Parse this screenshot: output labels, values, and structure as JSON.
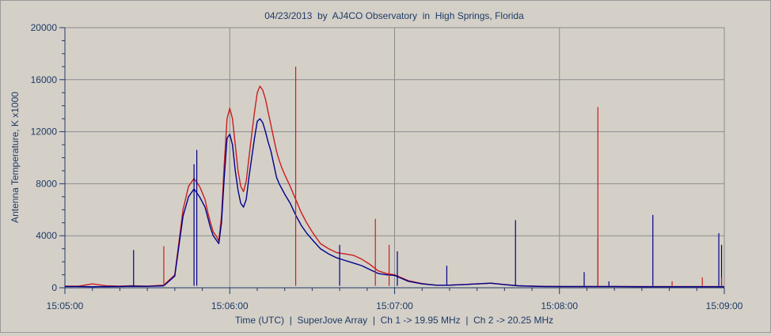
{
  "chart_data": {
    "type": "line",
    "title": "04/23/2013  by  AJ4CO Observatory  in  High Springs, Florida",
    "xlabel": "Time (UTC)  |  SuperJove Array  |  Ch 1 -> 19.95 MHz  |  Ch 2 -> 20.25 MHz",
    "ylabel": "Antenna Temperature, K x1000",
    "x_unit": "time (HH:MM:SS UTC)",
    "xlim": [
      "15:05:00",
      "15:09:00"
    ],
    "ylim": [
      0,
      20000
    ],
    "x_ticks": [
      "15:05:00",
      "15:06:00",
      "15:07:00",
      "15:08:00",
      "15:09:00"
    ],
    "y_ticks": [
      "0",
      "4000",
      "8000",
      "12000",
      "16000",
      "20000"
    ],
    "grid": true,
    "colors": {
      "ch1": "#00008b",
      "ch2": "#c81e1e",
      "plot_bg": "#d4d0c8",
      "text": "#1f3a66",
      "grid": "#8c8c8c"
    },
    "series": [
      {
        "color": "#00008b",
        "x": [
          "15:05:00",
          "15:05:05",
          "15:05:10",
          "15:05:15",
          "15:05:20",
          "15:05:24",
          "15:05:30",
          "15:05:36",
          "15:05:40",
          "15:05:43",
          "15:05:45",
          "15:05:47",
          "15:05:49",
          "15:05:51",
          "15:05:52",
          "15:05:53",
          "15:05:54",
          "15:05:55",
          "15:05:56",
          "15:05:57",
          "15:05:58",
          "15:05:59",
          "15:06:00",
          "15:06:01",
          "15:06:02",
          "15:06:03",
          "15:06:04",
          "15:06:05",
          "15:06:06",
          "15:06:07",
          "15:06:08",
          "15:06:09",
          "15:06:10",
          "15:06:11",
          "15:06:12",
          "15:06:13",
          "15:06:14",
          "15:06:15",
          "15:06:16",
          "15:06:17",
          "15:06:18",
          "15:06:19",
          "15:06:20",
          "15:06:22",
          "15:06:24",
          "15:06:26",
          "15:06:28",
          "15:06:30",
          "15:06:33",
          "15:06:36",
          "15:06:39",
          "15:06:42",
          "15:06:45",
          "15:06:48",
          "15:06:51",
          "15:06:54",
          "15:06:57",
          "15:07:00",
          "15:07:05",
          "15:07:10",
          "15:07:15",
          "15:07:20",
          "15:07:25",
          "15:07:30",
          "15:07:35",
          "15:07:40",
          "15:07:45",
          "15:07:50",
          "15:07:55",
          "15:08:00",
          "15:08:10",
          "15:08:20",
          "15:08:30",
          "15:08:40",
          "15:08:50",
          "15:09:00"
        ],
        "y": [
          100,
          100,
          80,
          90,
          100,
          120,
          110,
          150,
          900,
          5500,
          7000,
          7600,
          7000,
          6200,
          5400,
          4600,
          4000,
          3700,
          3400,
          5000,
          8500,
          11500,
          11800,
          11000,
          9000,
          7500,
          6500,
          6200,
          6800,
          8500,
          10000,
          11500,
          12800,
          13000,
          12700,
          12000,
          11200,
          10500,
          9500,
          8500,
          8000,
          7600,
          7200,
          6500,
          5600,
          4800,
          4200,
          3700,
          3000,
          2600,
          2300,
          2100,
          1900,
          1700,
          1400,
          1100,
          1000,
          950,
          500,
          300,
          200,
          200,
          250,
          300,
          350,
          250,
          150,
          120,
          100,
          100,
          100,
          100,
          80,
          80,
          80,
          80
        ]
      },
      {
        "color": "#c81e1e",
        "x": [
          "15:05:00",
          "15:05:05",
          "15:05:10",
          "15:05:15",
          "15:05:20",
          "15:05:24",
          "15:05:30",
          "15:05:36",
          "15:05:40",
          "15:05:43",
          "15:05:45",
          "15:05:47",
          "15:05:49",
          "15:05:51",
          "15:05:52",
          "15:05:53",
          "15:05:54",
          "15:05:55",
          "15:05:56",
          "15:05:57",
          "15:05:58",
          "15:05:59",
          "15:06:00",
          "15:06:01",
          "15:06:02",
          "15:06:03",
          "15:06:04",
          "15:06:05",
          "15:06:06",
          "15:06:07",
          "15:06:08",
          "15:06:09",
          "15:06:10",
          "15:06:11",
          "15:06:12",
          "15:06:13",
          "15:06:14",
          "15:06:15",
          "15:06:16",
          "15:06:17",
          "15:06:18",
          "15:06:19",
          "15:06:20",
          "15:06:22",
          "15:06:24",
          "15:06:26",
          "15:06:28",
          "15:06:30",
          "15:06:33",
          "15:06:36",
          "15:06:39",
          "15:06:42",
          "15:06:45",
          "15:06:48",
          "15:06:51",
          "15:06:54",
          "15:06:57",
          "15:07:00",
          "15:07:05",
          "15:07:10",
          "15:07:15",
          "15:07:20",
          "15:07:25",
          "15:07:30",
          "15:07:35",
          "15:07:40",
          "15:07:45",
          "15:07:50",
          "15:07:55",
          "15:08:00",
          "15:08:10",
          "15:08:20",
          "15:08:30",
          "15:08:40",
          "15:08:50",
          "15:09:00"
        ],
        "y": [
          120,
          120,
          300,
          150,
          120,
          150,
          120,
          200,
          1000,
          6000,
          7800,
          8400,
          7800,
          6800,
          5800,
          5000,
          4300,
          4000,
          3600,
          5500,
          9500,
          13000,
          13800,
          13000,
          11000,
          9000,
          7800,
          7400,
          8200,
          10000,
          11800,
          13500,
          15000,
          15500,
          15200,
          14500,
          13500,
          12500,
          11500,
          10500,
          9800,
          9200,
          8700,
          7800,
          6800,
          5800,
          5000,
          4300,
          3400,
          3000,
          2700,
          2600,
          2500,
          2200,
          1800,
          1300,
          1100,
          1000,
          550,
          320,
          200,
          200,
          250,
          300,
          350,
          250,
          150,
          130,
          110,
          100,
          100,
          100,
          90,
          90,
          90,
          90
        ]
      }
    ],
    "spikes": [
      {
        "color": "#00008b",
        "x": "15:05:25",
        "y": 2900
      },
      {
        "color": "#c81e1e",
        "x": "15:05:36",
        "y": 3200
      },
      {
        "color": "#00008b",
        "x": "15:05:47",
        "y": 9500
      },
      {
        "color": "#00008b",
        "x": "15:05:48",
        "y": 10600
      },
      {
        "color": "#c81e1e",
        "x": "15:06:24",
        "y": 17000
      },
      {
        "color": "#00008b",
        "x": "15:06:40",
        "y": 3300
      },
      {
        "color": "#c81e1e",
        "x": "15:06:53",
        "y": 5300
      },
      {
        "color": "#c81e1e",
        "x": "15:06:58",
        "y": 3300
      },
      {
        "color": "#00008b",
        "x": "15:07:01",
        "y": 2800
      },
      {
        "color": "#00008b",
        "x": "15:07:19",
        "y": 1700
      },
      {
        "color": "#00008b",
        "x": "15:07:44",
        "y": 5200
      },
      {
        "color": "#00008b",
        "x": "15:08:09",
        "y": 1200
      },
      {
        "color": "#c81e1e",
        "x": "15:08:14",
        "y": 13900
      },
      {
        "color": "#c81e1e",
        "x": "15:08:14",
        "y": 3800
      },
      {
        "color": "#00008b",
        "x": "15:08:18",
        "y": 500
      },
      {
        "color": "#00008b",
        "x": "15:08:34",
        "y": 5600
      },
      {
        "color": "#c81e1e",
        "x": "15:08:41",
        "y": 500
      },
      {
        "color": "#c81e1e",
        "x": "15:08:52",
        "y": 800
      },
      {
        "color": "#00008b",
        "x": "15:08:58",
        "y": 4200
      },
      {
        "color": "#00008b",
        "x": "15:08:59",
        "y": 3300
      },
      {
        "color": "#c81e1e",
        "x": "15:08:59",
        "y": 800
      }
    ]
  }
}
